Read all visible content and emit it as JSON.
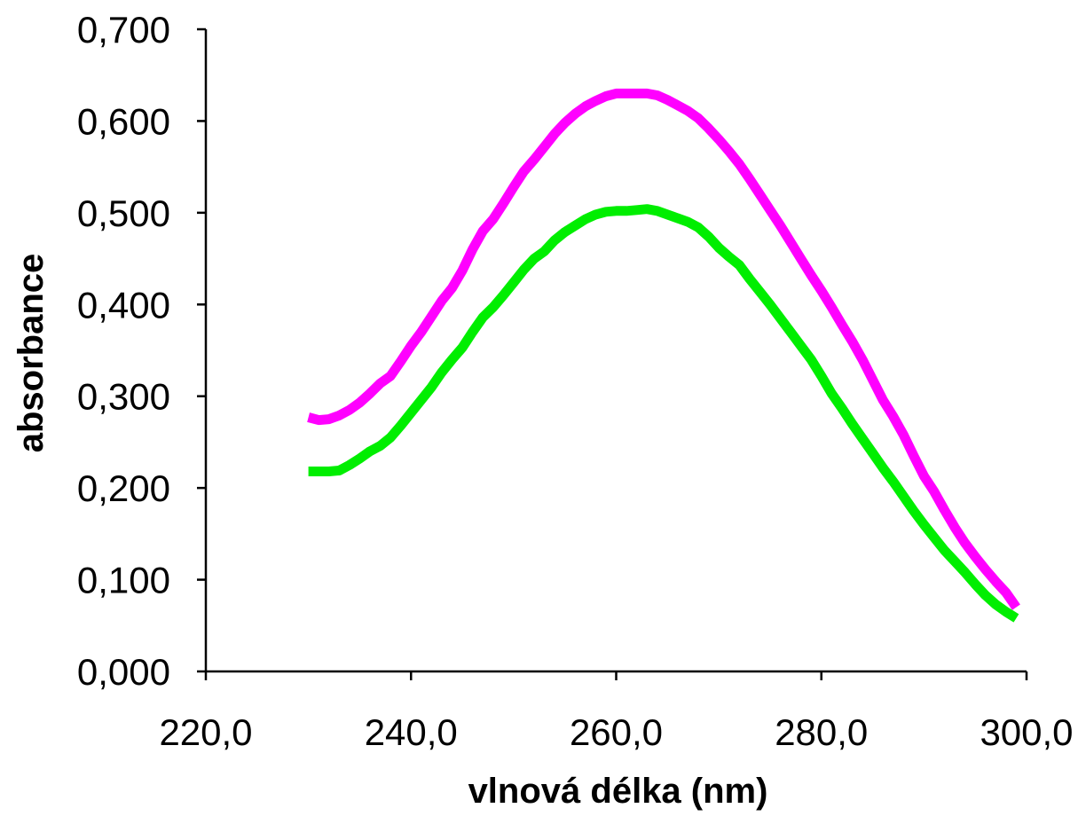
{
  "chart_data": {
    "type": "line",
    "xlabel": "vlnová délka (nm)",
    "ylabel": "absorbance",
    "xlim": [
      220,
      300
    ],
    "ylim": [
      0,
      0.7
    ],
    "x_ticks": [
      "220,0",
      "240,0",
      "260,0",
      "280,0",
      "300,0"
    ],
    "x_tick_values": [
      220,
      240,
      260,
      280,
      300
    ],
    "y_ticks": [
      "0,000",
      "0,100",
      "0,200",
      "0,300",
      "0,400",
      "0,500",
      "0,600",
      "0,700"
    ],
    "y_tick_values": [
      0,
      0.1,
      0.2,
      0.3,
      0.4,
      0.5,
      0.6,
      0.7
    ],
    "grid": false,
    "legend": "none",
    "series": [
      {
        "color": "#ff00ff",
        "x": [
          230,
          231,
          232,
          233,
          234,
          235,
          236,
          237,
          238,
          239,
          240,
          241,
          242,
          243,
          244,
          245,
          246,
          247,
          248,
          249,
          250,
          251,
          252,
          253,
          254,
          255,
          256,
          257,
          258,
          259,
          260,
          261,
          262,
          263,
          264,
          265,
          266,
          267,
          268,
          269,
          270,
          271,
          272,
          273,
          274,
          275,
          276,
          277,
          278,
          279,
          280,
          281,
          282,
          283,
          284,
          285,
          286,
          287,
          288,
          289,
          290,
          291,
          292,
          293,
          294,
          295,
          296,
          297,
          298,
          299
        ],
        "values": [
          0.277,
          0.274,
          0.275,
          0.279,
          0.285,
          0.293,
          0.303,
          0.314,
          0.322,
          0.338,
          0.355,
          0.37,
          0.387,
          0.404,
          0.418,
          0.437,
          0.46,
          0.48,
          0.493,
          0.51,
          0.528,
          0.545,
          0.558,
          0.572,
          0.586,
          0.598,
          0.608,
          0.616,
          0.622,
          0.627,
          0.63,
          0.63,
          0.63,
          0.63,
          0.628,
          0.623,
          0.617,
          0.611,
          0.603,
          0.592,
          0.58,
          0.567,
          0.553,
          0.537,
          0.52,
          0.503,
          0.486,
          0.468,
          0.45,
          0.432,
          0.415,
          0.397,
          0.378,
          0.36,
          0.34,
          0.318,
          0.296,
          0.278,
          0.258,
          0.235,
          0.213,
          0.196,
          0.176,
          0.157,
          0.14,
          0.125,
          0.111,
          0.098,
          0.086,
          0.07
        ]
      },
      {
        "color": "#00ee00",
        "x": [
          230,
          231,
          232,
          233,
          234,
          235,
          236,
          237,
          238,
          239,
          240,
          241,
          242,
          243,
          244,
          245,
          246,
          247,
          248,
          249,
          250,
          251,
          252,
          253,
          254,
          255,
          256,
          257,
          258,
          259,
          260,
          261,
          262,
          263,
          264,
          265,
          266,
          267,
          268,
          269,
          270,
          271,
          272,
          273,
          274,
          275,
          276,
          277,
          278,
          279,
          280,
          281,
          282,
          283,
          284,
          285,
          286,
          287,
          288,
          289,
          290,
          291,
          292,
          293,
          294,
          295,
          296,
          297,
          298,
          299
        ],
        "values": [
          0.218,
          0.218,
          0.218,
          0.219,
          0.225,
          0.232,
          0.24,
          0.246,
          0.255,
          0.268,
          0.282,
          0.296,
          0.31,
          0.326,
          0.34,
          0.353,
          0.37,
          0.386,
          0.397,
          0.41,
          0.424,
          0.438,
          0.45,
          0.458,
          0.47,
          0.479,
          0.486,
          0.493,
          0.498,
          0.501,
          0.502,
          0.502,
          0.503,
          0.504,
          0.502,
          0.498,
          0.494,
          0.49,
          0.484,
          0.474,
          0.462,
          0.452,
          0.443,
          0.428,
          0.414,
          0.4,
          0.385,
          0.37,
          0.355,
          0.34,
          0.322,
          0.303,
          0.287,
          0.27,
          0.254,
          0.238,
          0.222,
          0.207,
          0.191,
          0.175,
          0.16,
          0.146,
          0.132,
          0.12,
          0.108,
          0.095,
          0.083,
          0.073,
          0.065,
          0.058
        ]
      }
    ]
  }
}
